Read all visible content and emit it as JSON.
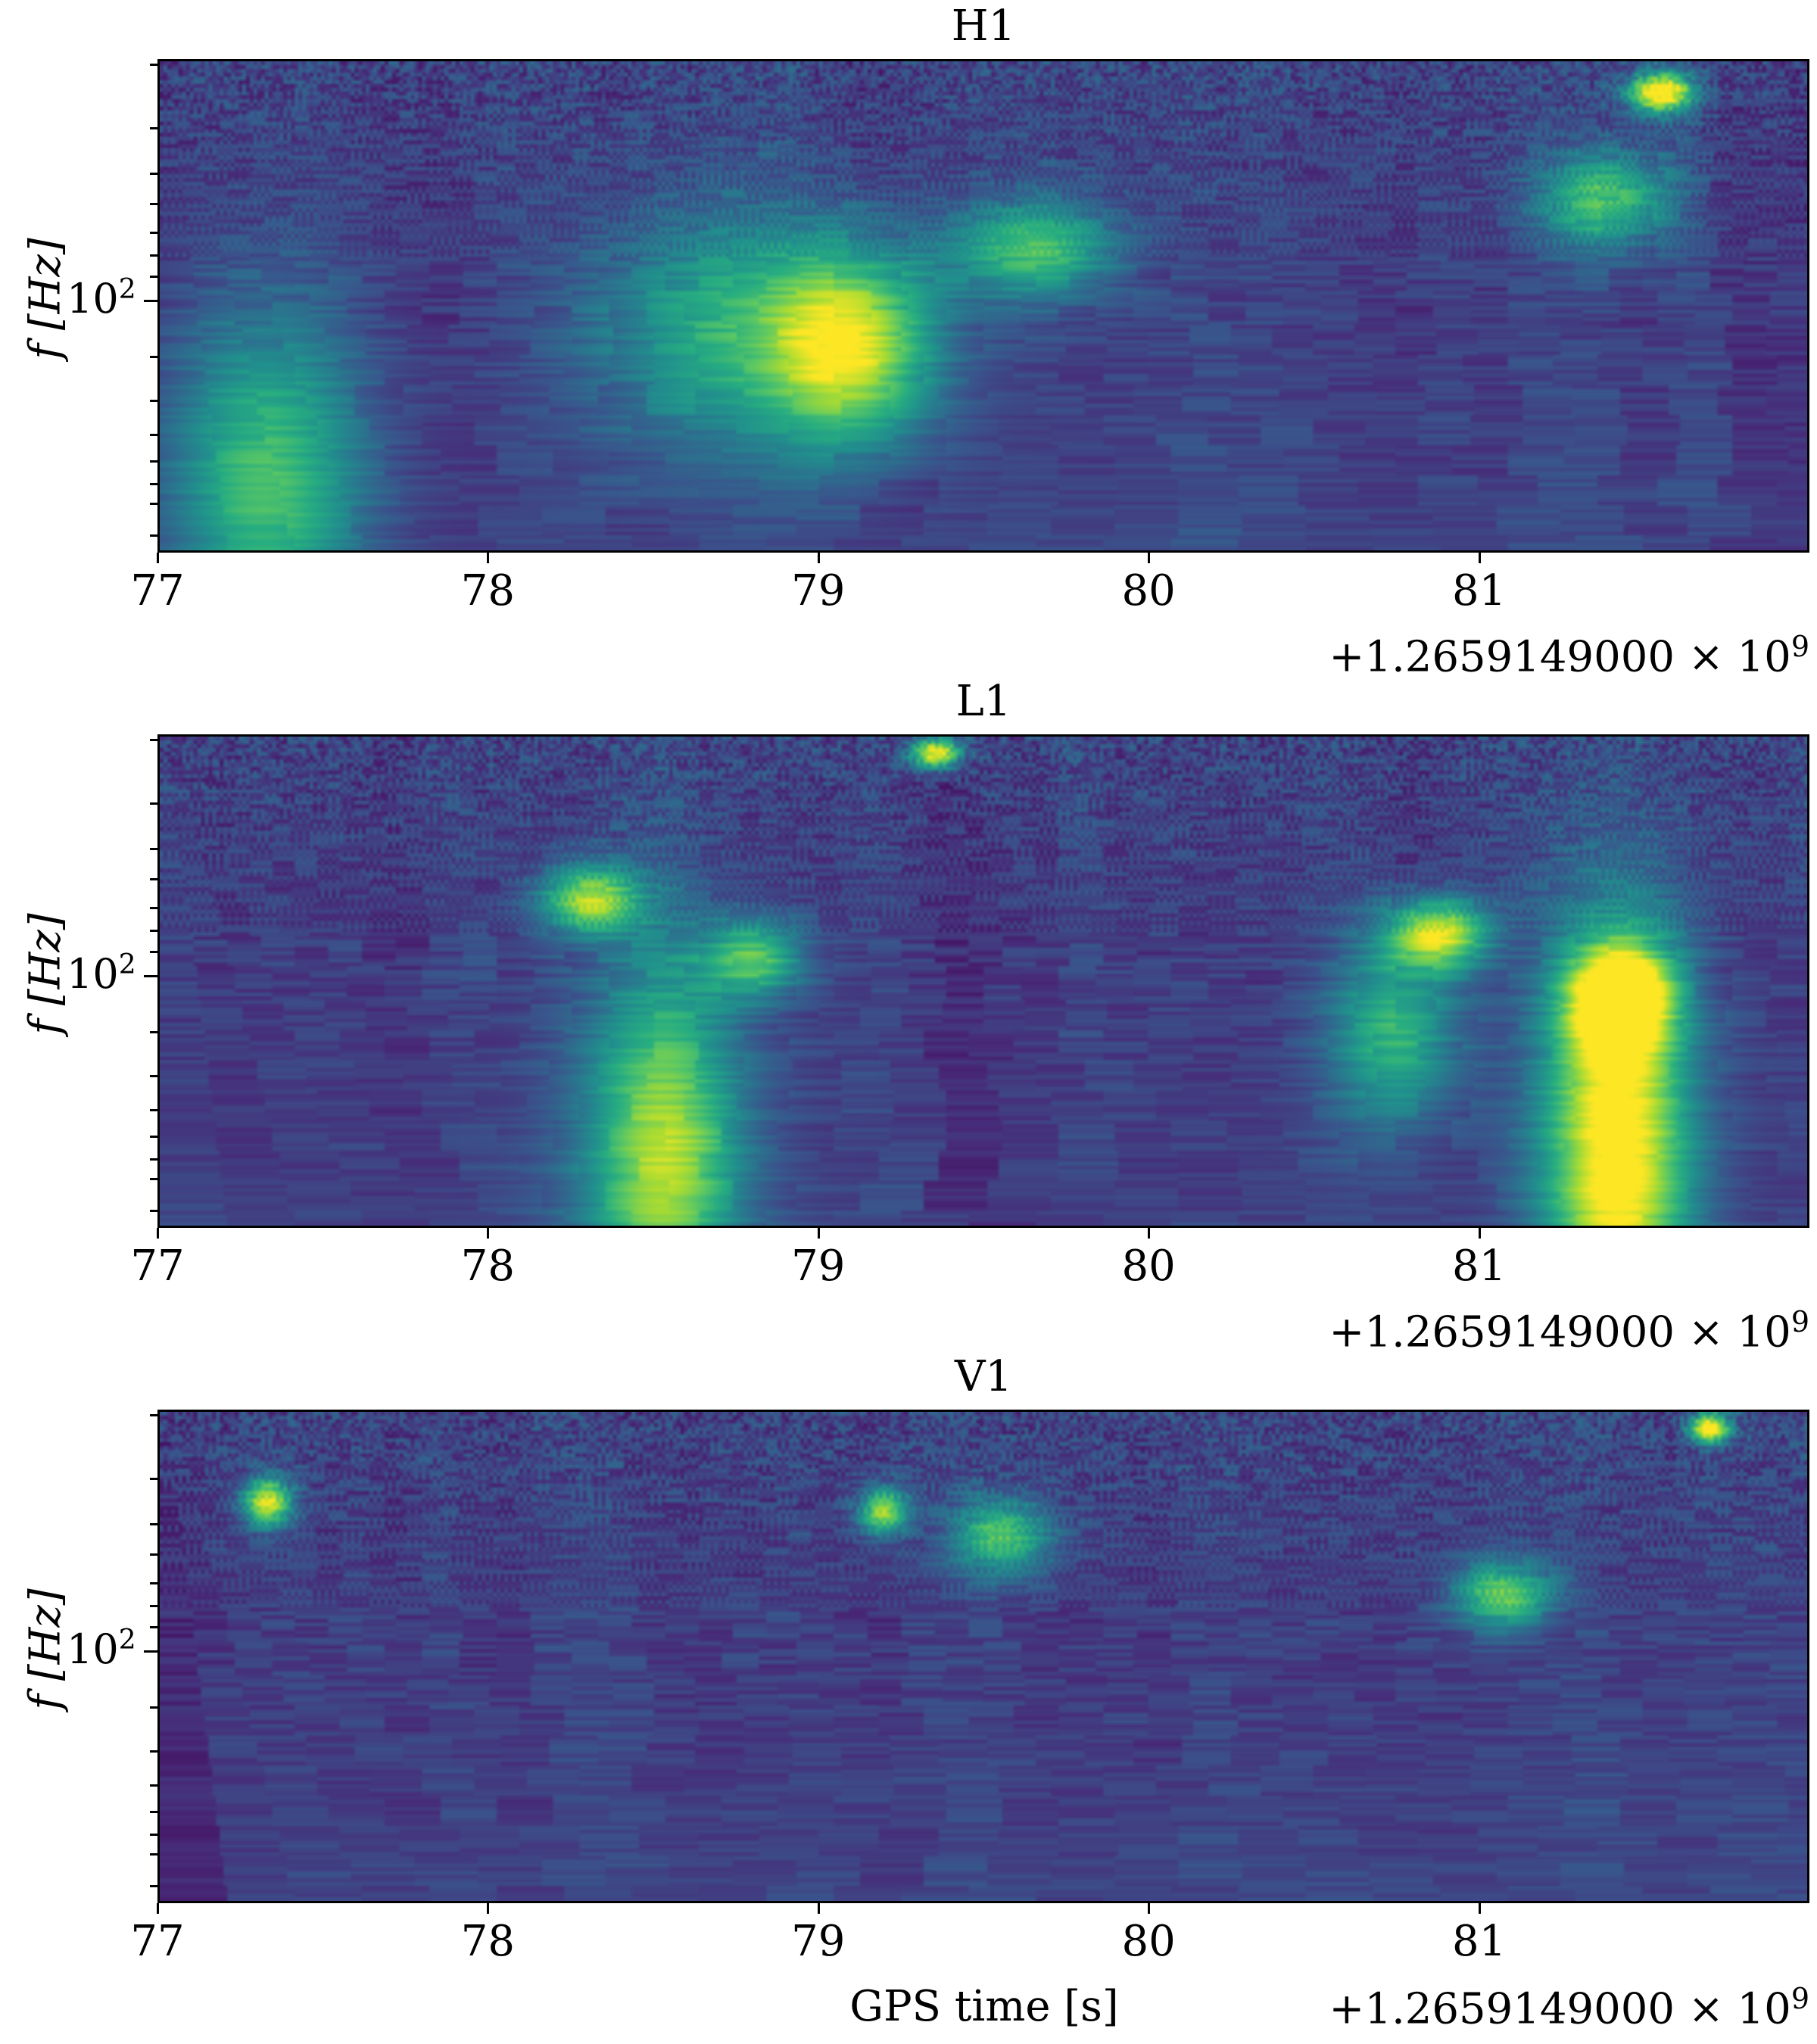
{
  "chart_data": [
    {
      "type": "heatmap",
      "title": "H1",
      "x_ticks": [
        "77",
        "78",
        "79",
        "80",
        "81"
      ],
      "x_range": [
        77.0,
        82.0
      ],
      "x_offset_label": "+1.2659149000 × 10",
      "x_offset_exp": "9",
      "y_scale": "log",
      "y_tick_label_base": "10",
      "y_tick_label_exp": "2",
      "y_label": "f [Hz]",
      "colormap": "viridis",
      "hotspots": [
        {
          "t": 77.31,
          "f_frac": 0.15,
          "amp": 0.55,
          "w": 0.06,
          "h": 0.35
        },
        {
          "t": 79.1,
          "f_frac": 0.42,
          "amp": 0.75,
          "w": 0.05,
          "h": 0.2
        },
        {
          "t": 78.7,
          "f_frac": 0.45,
          "amp": 0.45,
          "w": 0.08,
          "h": 0.25
        },
        {
          "t": 79.65,
          "f_frac": 0.62,
          "amp": 0.55,
          "w": 0.05,
          "h": 0.1
        },
        {
          "t": 81.38,
          "f_frac": 0.72,
          "amp": 0.55,
          "w": 0.04,
          "h": 0.1
        },
        {
          "t": 81.55,
          "f_frac": 0.94,
          "amp": 0.95,
          "w": 0.02,
          "h": 0.04
        }
      ],
      "seed": 11
    },
    {
      "type": "heatmap",
      "title": "L1",
      "x_ticks": [
        "77",
        "78",
        "79",
        "80",
        "81"
      ],
      "x_range": [
        77.0,
        82.0
      ],
      "x_offset_label": "+1.2659149000 × 10",
      "x_offset_exp": "9",
      "y_scale": "log",
      "y_tick_label_base": "10",
      "y_tick_label_exp": "2",
      "y_label": "f [Hz]",
      "colormap": "viridis",
      "hotspots": [
        {
          "t": 78.52,
          "f_frac": 0.15,
          "amp": 0.7,
          "w": 0.05,
          "h": 0.4
        },
        {
          "t": 81.42,
          "f_frac": 0.18,
          "amp": 0.95,
          "w": 0.045,
          "h": 0.45
        },
        {
          "t": 81.43,
          "f_frac": 0.47,
          "amp": 0.85,
          "w": 0.03,
          "h": 0.1
        },
        {
          "t": 78.3,
          "f_frac": 0.67,
          "amp": 0.7,
          "w": 0.03,
          "h": 0.07
        },
        {
          "t": 80.88,
          "f_frac": 0.6,
          "amp": 0.75,
          "w": 0.03,
          "h": 0.07
        },
        {
          "t": 78.8,
          "f_frac": 0.55,
          "amp": 0.55,
          "w": 0.03,
          "h": 0.08
        },
        {
          "t": 80.75,
          "f_frac": 0.4,
          "amp": 0.5,
          "w": 0.04,
          "h": 0.2
        },
        {
          "t": 79.35,
          "f_frac": 0.97,
          "amp": 0.9,
          "w": 0.015,
          "h": 0.03
        }
      ],
      "seed": 23
    },
    {
      "type": "heatmap",
      "title": "V1",
      "x_ticks": [
        "77",
        "78",
        "79",
        "80",
        "81"
      ],
      "x_range": [
        77.0,
        82.0
      ],
      "x_offset_label": "+1.2659149000 × 10",
      "x_offset_exp": "9",
      "y_scale": "log",
      "y_tick_label_base": "10",
      "y_tick_label_exp": "2",
      "y_label": "f [Hz]",
      "colormap": "viridis",
      "xlabel": "GPS time [s]",
      "hotspots": [
        {
          "t": 77.32,
          "f_frac": 0.82,
          "amp": 0.8,
          "w": 0.015,
          "h": 0.05
        },
        {
          "t": 79.19,
          "f_frac": 0.8,
          "amp": 0.7,
          "w": 0.015,
          "h": 0.05
        },
        {
          "t": 81.07,
          "f_frac": 0.63,
          "amp": 0.6,
          "w": 0.03,
          "h": 0.07
        },
        {
          "t": 81.7,
          "f_frac": 0.97,
          "amp": 0.95,
          "w": 0.012,
          "h": 0.03
        },
        {
          "t": 79.55,
          "f_frac": 0.75,
          "amp": 0.55,
          "w": 0.03,
          "h": 0.08
        }
      ],
      "seed": 37
    }
  ]
}
